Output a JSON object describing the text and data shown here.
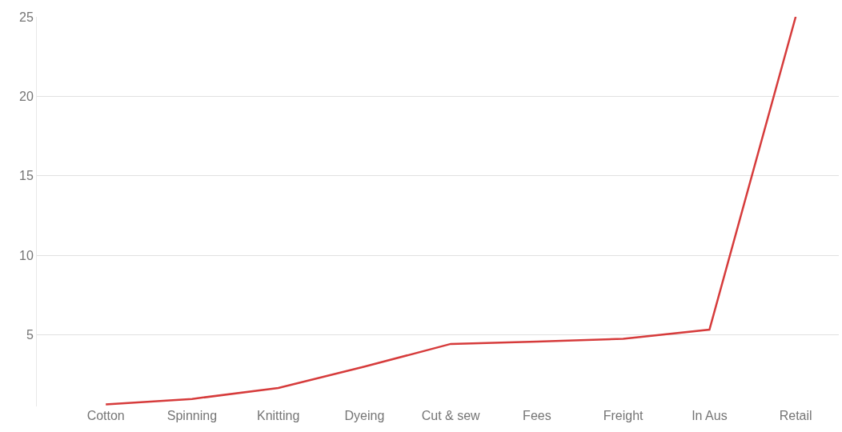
{
  "chart_data": {
    "type": "line",
    "categories": [
      "Cotton",
      "Spinning",
      "Knitting",
      "Dyeing",
      "Cut & sew",
      "Fees",
      "Freight",
      "In Aus",
      "Retail"
    ],
    "series": [
      {
        "color": "#d63b3b",
        "values": [
          0.62,
          0.97,
          1.66,
          3.0,
          4.43,
          4.58,
          4.75,
          5.33,
          25
        ]
      }
    ],
    "ylim": [
      0.5,
      25
    ],
    "yticks": [
      5,
      10,
      15,
      20,
      25
    ],
    "grid": "y",
    "marker": "none",
    "line_style": "solid"
  }
}
